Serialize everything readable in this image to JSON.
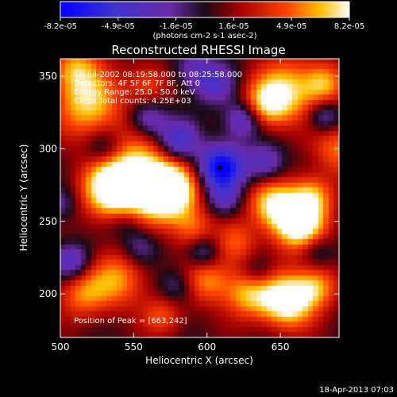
{
  "chart_data": {
    "type": "heatmap",
    "title": "Reconstructed RHESSI Image",
    "xlabel": "Heliocentric X (arcsec)",
    "ylabel": "Heliocentric Y (arcsec)",
    "xlim": [
      500,
      690
    ],
    "ylim": [
      170,
      362
    ],
    "x_ticks": [
      500,
      550,
      600,
      650
    ],
    "y_ticks": [
      200,
      250,
      300,
      350
    ],
    "colorbar": {
      "min": -8.2e-05,
      "max": 8.2e-05,
      "tick_labels": [
        "-8.2e-05",
        "-4.9e-05",
        "-1.6e-05",
        "1.6e-05",
        "4.9e-05",
        "8.2e-05"
      ],
      "units_label": "(photons cm-2 s-1 asec-2)"
    },
    "annotations": [
      "18-Jul-2002 08:19:58.000 to 08:25:58.000",
      "Detectors: 4F 5F 6F 7F 8F, Att 0",
      "Energy Range: 25.0 - 50.0 keV",
      "Clean     Total counts: 4.25E+03"
    ],
    "peak_label": "Position of Peak = [663,242]",
    "marker": {
      "x": 609,
      "y": 287
    },
    "blobs": [
      {
        "x": 555,
        "y": 278,
        "amp": 1.0,
        "s": 20
      },
      {
        "x": 575,
        "y": 270,
        "amp": 0.9,
        "s": 12
      },
      {
        "x": 535,
        "y": 272,
        "amp": 0.7,
        "s": 14
      },
      {
        "x": 663,
        "y": 248,
        "amp": 1.0,
        "s": 13
      },
      {
        "x": 645,
        "y": 262,
        "amp": 0.7,
        "s": 12
      },
      {
        "x": 672,
        "y": 268,
        "amp": 0.55,
        "s": 10
      },
      {
        "x": 655,
        "y": 195,
        "amp": 1.0,
        "s": 13
      },
      {
        "x": 628,
        "y": 200,
        "amp": 0.6,
        "s": 12
      },
      {
        "x": 675,
        "y": 205,
        "amp": 0.55,
        "s": 10
      },
      {
        "x": 520,
        "y": 330,
        "amp": 0.7,
        "s": 16
      },
      {
        "x": 510,
        "y": 355,
        "amp": 0.55,
        "s": 12
      },
      {
        "x": 655,
        "y": 340,
        "amp": 0.65,
        "s": 16
      },
      {
        "x": 640,
        "y": 330,
        "amp": 0.6,
        "s": 11
      },
      {
        "x": 680,
        "y": 345,
        "amp": 0.55,
        "s": 10
      },
      {
        "x": 590,
        "y": 245,
        "amp": 0.45,
        "s": 10
      },
      {
        "x": 600,
        "y": 210,
        "amp": 0.55,
        "s": 12
      },
      {
        "x": 540,
        "y": 210,
        "amp": 0.55,
        "s": 14
      },
      {
        "x": 515,
        "y": 200,
        "amp": 0.5,
        "s": 12
      },
      {
        "x": 570,
        "y": 185,
        "amp": 0.4,
        "s": 10
      },
      {
        "x": 620,
        "y": 235,
        "amp": 0.4,
        "s": 10
      },
      {
        "x": 560,
        "y": 345,
        "amp": 0.4,
        "s": 10
      },
      {
        "x": 690,
        "y": 300,
        "amp": 0.5,
        "s": 12
      },
      {
        "x": 610,
        "y": 287,
        "amp": -1.0,
        "s": 11
      },
      {
        "x": 580,
        "y": 305,
        "amp": -0.7,
        "s": 10
      },
      {
        "x": 625,
        "y": 320,
        "amp": -0.6,
        "s": 9
      },
      {
        "x": 605,
        "y": 345,
        "amp": -0.5,
        "s": 10
      },
      {
        "x": 560,
        "y": 320,
        "amp": -0.5,
        "s": 9
      },
      {
        "x": 530,
        "y": 300,
        "amp": -0.4,
        "s": 9
      },
      {
        "x": 508,
        "y": 222,
        "amp": -0.55,
        "s": 9
      },
      {
        "x": 555,
        "y": 232,
        "amp": -0.4,
        "s": 9
      },
      {
        "x": 598,
        "y": 228,
        "amp": -0.45,
        "s": 8
      },
      {
        "x": 612,
        "y": 265,
        "amp": -0.4,
        "s": 8
      },
      {
        "x": 640,
        "y": 290,
        "amp": -0.5,
        "s": 9
      },
      {
        "x": 680,
        "y": 322,
        "amp": -0.45,
        "s": 8
      },
      {
        "x": 580,
        "y": 205,
        "amp": -0.35,
        "s": 9
      },
      {
        "x": 545,
        "y": 250,
        "amp": -0.35,
        "s": 9
      },
      {
        "x": 675,
        "y": 230,
        "amp": -0.3,
        "s": 8
      },
      {
        "x": 590,
        "y": 355,
        "amp": -0.35,
        "s": 9
      },
      {
        "x": 500,
        "y": 262,
        "amp": -0.3,
        "s": 8
      },
      {
        "x": 635,
        "y": 215,
        "amp": -0.3,
        "s": 8
      }
    ]
  },
  "footer": {
    "timestamp": "18-Apr-2013 07:03"
  }
}
